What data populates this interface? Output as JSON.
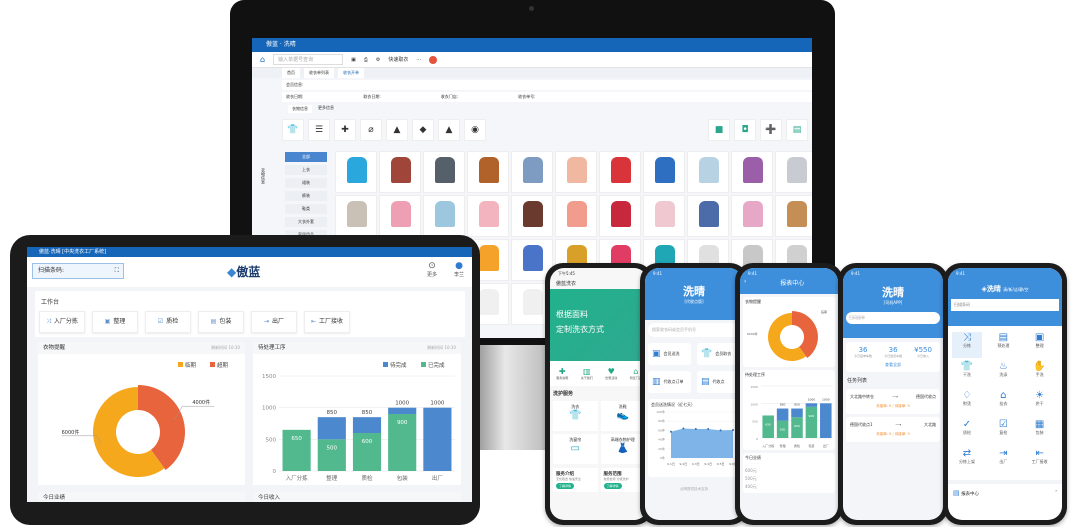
{
  "monitor": {
    "window_title": "傲蓝 · 洗晴",
    "search_placeholder": "输入单据号查询",
    "toolbar_item": "快速取衣",
    "tabs": [
      "首页",
      "收衣单列表",
      "收衣开单"
    ],
    "filters": [
      "会员信息:",
      "收衣日期:",
      "取衣日期:",
      "收衣门店:",
      "收衣单号:"
    ],
    "subtabs": [
      "衣物信息",
      "更多信息"
    ],
    "icons": [
      {
        "icon": "shirt-icon",
        "glyph": "👕"
      },
      {
        "icon": "layers-icon",
        "glyph": "☰"
      },
      {
        "icon": "puzzle-icon",
        "glyph": "✚"
      },
      {
        "icon": "attachment-icon",
        "glyph": "⌀"
      },
      {
        "icon": "iron-icon",
        "glyph": "▲"
      },
      {
        "icon": "tag-icon",
        "glyph": "◆"
      },
      {
        "icon": "warning-icon",
        "glyph": "▲"
      },
      {
        "icon": "palette-icon",
        "glyph": "◉"
      }
    ],
    "right_icons": [
      {
        "icon": "bag-icon",
        "glyph": "■"
      },
      {
        "icon": "camera-icon",
        "glyph": "◘"
      },
      {
        "icon": "next-icon",
        "glyph": "➕"
      },
      {
        "icon": "list-icon",
        "glyph": "▤"
      }
    ],
    "side_label": "衣物信息",
    "categories": [
      "全部",
      "上衣",
      "裙装",
      "裤装",
      "鞋类",
      "大衣外套",
      "家居用品"
    ],
    "clothes_colors": [
      "#2aa7dc",
      "#a0453a",
      "#56606b",
      "#b0622a",
      "#7e9cc2",
      "#f0b8a0",
      "#d8343a",
      "#2f6fc2",
      "#b7d2e2",
      "#9b5ea8",
      "#c8ccd2",
      "#c9c0b6",
      "#ef9fb4",
      "#9cc7df",
      "#f3b4c0",
      "#6b3a2e",
      "#f19c8c",
      "#c8283c",
      "#f0c8d0",
      "#4b6ca8",
      "#e7a8c8",
      "#c48e55",
      "#dfe7f3",
      "#6b8dbd",
      "#48b8c8",
      "#f5a22a",
      "#4a74c8",
      "#d8a028",
      "#e03c64",
      "#1fa7b5",
      "#e0e0e0",
      "#c8c8c8",
      "#d0d0d0",
      "#e8d29a",
      "#4e6a8a",
      "#ffffff",
      "#f0f0f0",
      "#f0f0f0",
      "#f0f0f0",
      "#f0f0f0",
      "#f0f0f0",
      "#f0f0f0",
      "#f0f0f0"
    ]
  },
  "tablet": {
    "window_title": "傲蓝·洗晴 [中央洗衣工厂系统]",
    "scan_label": "扫描条码:",
    "logo": "傲蓝",
    "more_label": "更多",
    "user_label": "李兰",
    "workbench_title": "工作台",
    "workbench_buttons": [
      "入厂分拣",
      "整理",
      "质检",
      "包装",
      "出厂",
      "工厂接收"
    ],
    "panel_left_title": "衣物提醒",
    "panel_right_title": "待处理工序",
    "refresh_time": "刷新时间 10:30",
    "bottom_left_title": "今日业绩",
    "bottom_right_title": "今日收入"
  },
  "chart_data": [
    {
      "type": "pie",
      "donut": true,
      "labels": [
        "临期",
        "超期"
      ],
      "values": [
        6000,
        4000
      ],
      "data_labels": [
        "6000件",
        "4000件"
      ],
      "colors": [
        "#f5a81c",
        "#e8643c"
      ],
      "legend": "top-right"
    },
    {
      "type": "bar",
      "stacked": true,
      "categories": [
        "入厂分拣",
        "整理",
        "质检",
        "包装",
        "出厂"
      ],
      "series": [
        {
          "name": "已完成",
          "values": [
            650,
            500,
            600,
            900,
            0
          ],
          "color": "#52b98f"
        },
        {
          "name": "待完成",
          "values": [
            0,
            350,
            250,
            100,
            1000
          ],
          "color": "#4c88cd"
        }
      ],
      "totals": [
        650,
        850,
        850,
        1000,
        1000
      ],
      "ylim": [
        0,
        1500
      ],
      "yticks": [
        0,
        500,
        1000,
        1500
      ],
      "grid": true,
      "legend": "top-right"
    }
  ],
  "phones": [
    {
      "status": "下午5:45",
      "app": "傲蓝洗衣",
      "banner_line1": "根据面料",
      "banner_line2": "定制洗衣方式",
      "quick": [
        "服务说明",
        "关于我们",
        "优惠活动",
        "附近门店"
      ],
      "section": "洗护服务",
      "services": [
        "洗衣",
        "洗鞋",
        "洗窗帘",
        "高端衣物护理"
      ],
      "info": [
        {
          "title": "服务介绍",
          "sub": "无忧取送 快速安全",
          "btn": "了解详情"
        },
        {
          "title": "服务范围",
          "sub": "免费检测 分级洗护",
          "btn": "了解详情"
        }
      ]
    },
    {
      "time": "9:41",
      "title": "洗晴",
      "subtitle": "[代收点版]",
      "search": "搜索收衣码或会员手机号",
      "tiles": [
        "会员送洗",
        "会员取衣",
        "代收点订单",
        "代收点"
      ],
      "chart_title": "会员送洗情况（近七天）",
      "yticks": [
        "100件",
        "80件",
        "60件",
        "40件",
        "20件",
        "0件"
      ],
      "xticks": [
        "9.1日",
        "9.2日",
        "9.3日",
        "9.4日",
        "9.5日",
        "9.6日"
      ],
      "values": [
        57,
        64,
        63,
        63,
        60,
        61
      ],
      "footer": "点晴提供技术支持"
    },
    {
      "time": "9:41",
      "title": "报表中心",
      "panel1": "衣物提醒",
      "legend": "临期",
      "label": "6000件",
      "label2": "4000件",
      "panel2": "待处理工序",
      "legend2": "待完成",
      "panel3": "今日业绩",
      "yticks": [
        "600元",
        "500元",
        "400元"
      ]
    },
    {
      "time": "9:41",
      "title": "洗晴",
      "subtitle": "[司机APP]",
      "search": "扫码接单",
      "stats": [
        {
          "value": "36",
          "label": "今日接单车数"
        },
        {
          "value": "36",
          "label": "今日送货车数"
        },
        {
          "value": "¥550",
          "label": "今日收入"
        }
      ],
      "link": "查看全部",
      "tasks_title": "任务列表",
      "tasks": [
        {
          "from": "大北路中转仓",
          "to": "德国代收点",
          "stat": "未接单: 0 / 待接单: 0"
        },
        {
          "from": "德国代收点1",
          "to": "大北路",
          "stat": "未接单: 0 / 待接单: 3"
        }
      ]
    },
    {
      "time": "9:41",
      "title": "洗晴",
      "slogan": "清/新/洁/静/空",
      "search": "扫描条码",
      "grid": [
        {
          "icon": "shuffle-icon",
          "g": "⤨",
          "l": "分拣"
        },
        {
          "icon": "checklist-icon",
          "g": "▤",
          "l": "预处理"
        },
        {
          "icon": "box-icon",
          "g": "▣",
          "l": "整理"
        },
        {
          "icon": "dry-clean-icon",
          "g": "👕",
          "l": "干洗"
        },
        {
          "icon": "wash-icon",
          "g": "♨",
          "l": "洗涤"
        },
        {
          "icon": "handwash-icon",
          "g": "✋",
          "l": "手洗"
        },
        {
          "icon": "ironing-icon",
          "g": "♢",
          "l": "熨烫"
        },
        {
          "icon": "hang-icon",
          "g": "⌂",
          "l": "挂衣"
        },
        {
          "icon": "sun-icon",
          "g": "☀",
          "l": "烘干"
        },
        {
          "icon": "quality-icon",
          "g": "✓",
          "l": "质检"
        },
        {
          "icon": "recheck-icon",
          "g": "☑",
          "l": "复检"
        },
        {
          "icon": "pack-icon",
          "g": "▦",
          "l": "包装"
        },
        {
          "icon": "sort-icon",
          "g": "⇄",
          "l": "分拣上架"
        },
        {
          "icon": "out-icon",
          "g": "⇥",
          "l": "出厂"
        },
        {
          "icon": "receive-icon",
          "g": "⇤",
          "l": "工厂接收"
        }
      ],
      "report": "报表中心"
    }
  ]
}
